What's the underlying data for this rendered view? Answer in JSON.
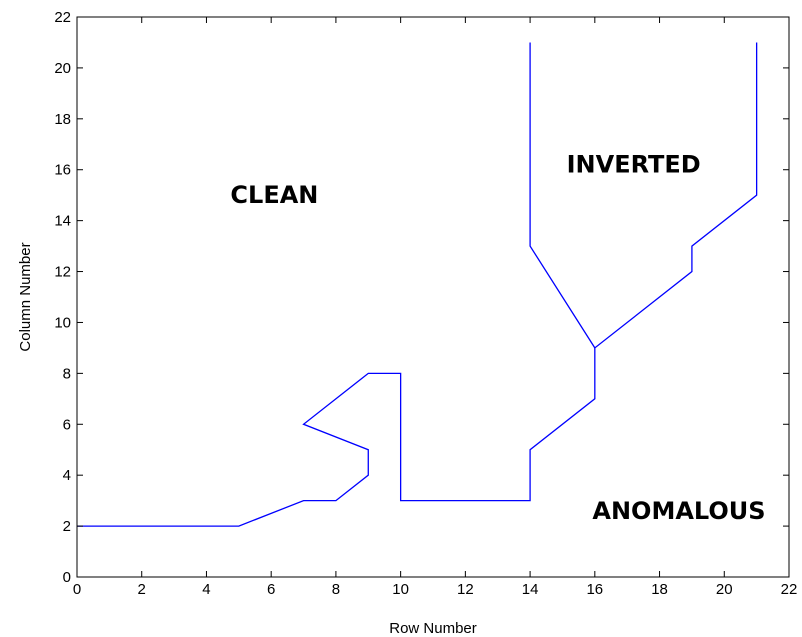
{
  "chart_data": {
    "type": "line",
    "title": "",
    "xlabel": "Row Number",
    "ylabel": "Column Number",
    "xlim": [
      0,
      22
    ],
    "ylim": [
      0,
      22
    ],
    "xticks": [
      0,
      2,
      4,
      6,
      8,
      10,
      12,
      14,
      16,
      18,
      20,
      22
    ],
    "yticks": [
      0,
      2,
      4,
      6,
      8,
      10,
      12,
      14,
      16,
      18,
      20,
      22
    ],
    "grid": false,
    "line_color": "#0000ff",
    "series": [
      {
        "x": [
          0,
          5,
          7,
          8,
          9,
          9,
          7,
          9,
          10,
          10,
          14,
          14,
          16,
          16,
          19,
          19,
          21,
          21
        ],
        "y": [
          2,
          2,
          3,
          3,
          4,
          5,
          6,
          8,
          8,
          3,
          3,
          5,
          7,
          9,
          12,
          13,
          15,
          21
        ]
      },
      {
        "x": [
          14,
          14,
          16
        ],
        "y": [
          21,
          13,
          9
        ]
      }
    ],
    "annotations": [
      {
        "text": "CLEAN",
        "x": 6.1,
        "y": 15
      },
      {
        "text": "INVERTED",
        "x": 17.2,
        "y": 16.2
      },
      {
        "text": "ANOMALOUS",
        "x": 18.6,
        "y": 2.6
      }
    ]
  }
}
